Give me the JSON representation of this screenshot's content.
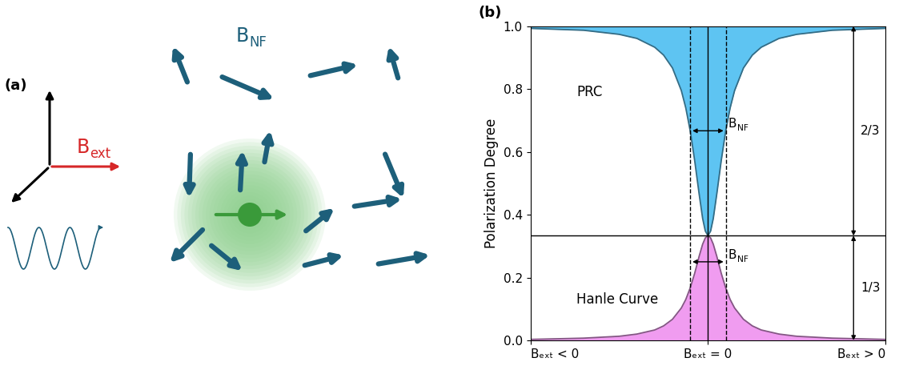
{
  "panel_a": {
    "label": "(a)",
    "external_field": {
      "text": "B",
      "subscript": "ext",
      "color": "#d62728"
    },
    "nuclear_field": {
      "text": "B",
      "subscript": "NF",
      "color": "#1d5f7a"
    }
  },
  "chart_data": {
    "type": "area",
    "panel_label": "(b)",
    "ylabel": "Polarization Degree",
    "x": [
      -10,
      -7,
      -5,
      -4,
      -3,
      -2.5,
      -2,
      -1.5,
      -1.25,
      -1,
      -0.75,
      -0.5,
      -0.3,
      -0.15,
      0,
      0.15,
      0.3,
      0.5,
      0.75,
      1,
      1.25,
      1.5,
      2,
      2.5,
      3,
      4,
      5,
      7,
      10
    ],
    "series": [
      {
        "color": "#5ec4f2",
        "values": [
          0.993,
          0.987,
          0.974,
          0.961,
          0.933,
          0.908,
          0.867,
          0.795,
          0.74,
          0.667,
          0.573,
          0.467,
          0.388,
          0.348,
          0.333,
          0.348,
          0.388,
          0.467,
          0.573,
          0.667,
          0.74,
          0.795,
          0.867,
          0.908,
          0.933,
          0.961,
          0.974,
          0.987,
          0.993
        ]
      },
      {
        "color": "#f09cf0",
        "values": [
          0.003,
          0.007,
          0.013,
          0.02,
          0.033,
          0.046,
          0.067,
          0.103,
          0.13,
          0.167,
          0.213,
          0.267,
          0.306,
          0.326,
          0.333,
          0.326,
          0.306,
          0.267,
          0.213,
          0.167,
          0.13,
          0.103,
          0.067,
          0.046,
          0.033,
          0.02,
          0.013,
          0.007,
          0.003
        ]
      }
    ],
    "xlim": [
      -10,
      10
    ],
    "xticks": [
      {
        "value": -10,
        "label": "Bₑₓₜ < 0"
      },
      {
        "value": 0,
        "label": "Bₑₓₜ = 0"
      },
      {
        "value": 10,
        "label": "Bₑₓₜ > 0"
      }
    ],
    "ylim": [
      0,
      1
    ],
    "yticks": [
      {
        "value": 0,
        "label": "0.0"
      },
      0.2,
      0.4,
      0.6,
      0.8,
      {
        "value": 1,
        "label": "1.0"
      }
    ],
    "reference_lines": {
      "x": [
        -1,
        0,
        1
      ],
      "y": 0.333
    },
    "annotations": [
      {
        "text": "PRC"
      },
      {
        "text": "Hanle Curve"
      },
      {
        "text": "B",
        "subscript": "NF"
      },
      {
        "text": "B",
        "subscript": "NF"
      },
      {
        "text": "2/3"
      },
      {
        "text": "1/3"
      }
    ]
  }
}
